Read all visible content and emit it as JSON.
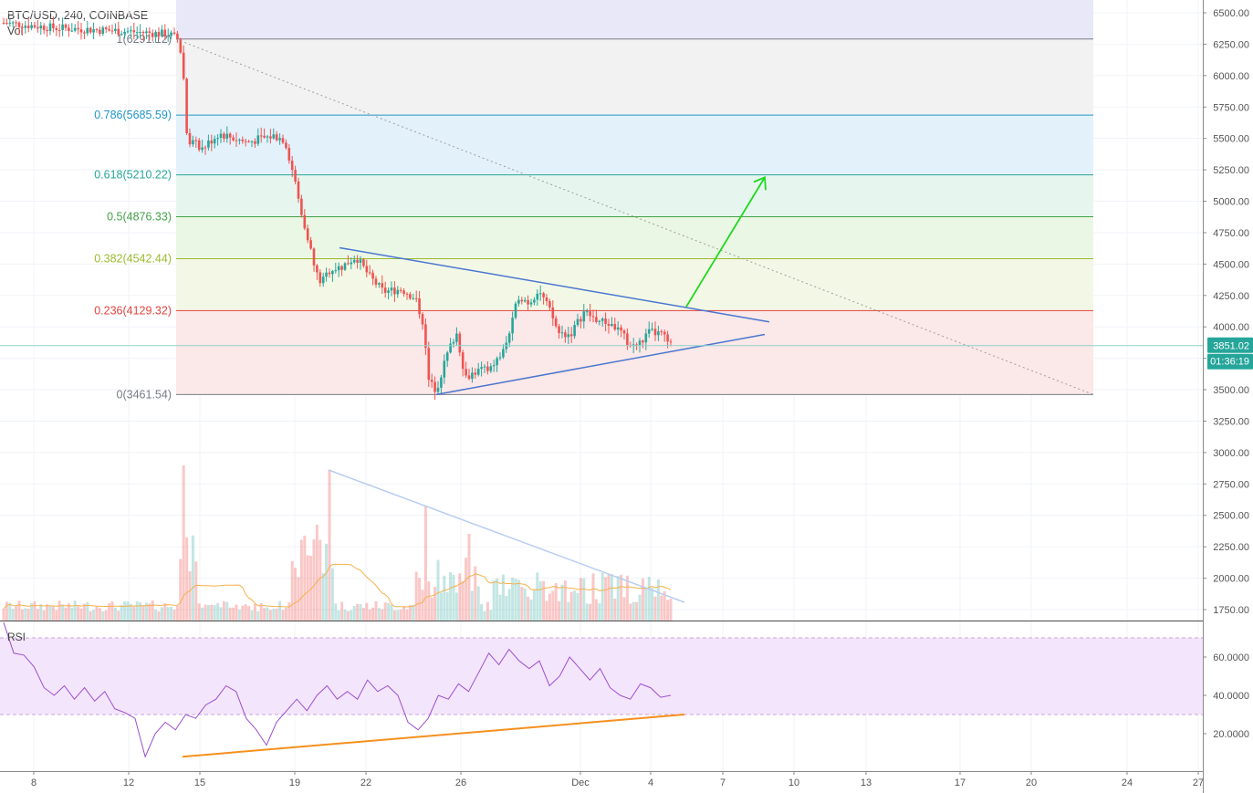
{
  "header": {
    "symbol_line": "BTC/USD, 240, COINBASE",
    "volume_label": "Vol"
  },
  "rsi_label": "RSI",
  "price_axis": {
    "ticks": [
      "6500.00",
      "6250.00",
      "6000.00",
      "5750.00",
      "5500.00",
      "5250.00",
      "5000.00",
      "4750.00",
      "4500.00",
      "4250.00",
      "4000.00",
      "3750.00",
      "3500.00",
      "3250.00",
      "3000.00",
      "2750.00",
      "2500.00",
      "2250.00",
      "2000.00",
      "1750.00"
    ],
    "last_price": "3851.02",
    "countdown": "01:36:19"
  },
  "rsi_axis": {
    "ticks": [
      "60.0000",
      "40.0000",
      "20.0000"
    ]
  },
  "date_axis": {
    "ticks": [
      "8",
      "12",
      "15",
      "19",
      "22",
      "26",
      "Dec",
      "4",
      "7",
      "10",
      "13",
      "17",
      "20",
      "24",
      "27"
    ]
  },
  "fib_levels": [
    {
      "label": "1(6291.12)",
      "price": 6291.12,
      "color": "#787b86",
      "fill": "#e8e8f8"
    },
    {
      "label": "0.786(5685.59)",
      "price": 5685.59,
      "color": "#2196c3",
      "fill": "#f2f2f2"
    },
    {
      "label": "0.618(5210.22)",
      "price": 5210.22,
      "color": "#26a69a",
      "fill": "#e3f1fb"
    },
    {
      "label": "0.5(4876.33)",
      "price": 4876.33,
      "color": "#43a047",
      "fill": "#e6f6ee"
    },
    {
      "label": "0.382(4542.44)",
      "price": 4542.44,
      "color": "#9aba2d",
      "fill": "#eaf7e4"
    },
    {
      "label": "0.236(4129.32)",
      "price": 4129.32,
      "color": "#e0443f",
      "fill": "#f3f8e6"
    },
    {
      "label": "0(3461.54)",
      "price": 3461.54,
      "color": "#787b86",
      "fill": "#fbe8e8"
    }
  ],
  "colors": {
    "up": "#26a69a",
    "down": "#ef5350",
    "trendline": "#4a76d0",
    "arrow": "#1ed81e",
    "rsi": "#9c4fcf",
    "rsi_band": "#f3e5fb",
    "rsi_trend": "#f5901e",
    "volume_ma": "#f5b14a",
    "volume_trend": "#b9cdf0"
  },
  "chart_data": {
    "type": "candlestick",
    "title": "BTC/USD, 240, COINBASE",
    "price_range": [
      1650,
      6620
    ],
    "rsi_range": [
      5,
      72
    ],
    "rsi_band": [
      30,
      70
    ],
    "key_prices": {
      "start": 6420,
      "breakdown_start": 6290,
      "plateau": 5500,
      "low": 3461.54,
      "last": 3851.02,
      "target": 5190
    },
    "triangle": {
      "upper_start": 4630,
      "upper_end": 4040,
      "lower_start": 3461.54,
      "lower_end": 3940
    },
    "rsi_points": [
      78,
      62,
      61,
      55,
      44,
      40,
      45,
      38,
      44,
      37,
      42,
      33,
      31,
      28,
      8,
      20,
      26,
      22,
      30,
      28,
      35,
      38,
      45,
      42,
      28,
      22,
      14,
      26,
      32,
      38,
      32,
      40,
      45,
      38,
      42,
      38,
      48,
      42,
      45,
      40,
      26,
      22,
      28,
      40,
      38,
      46,
      42,
      52,
      62,
      56,
      64,
      58,
      54,
      58,
      45,
      50,
      60,
      54,
      48,
      54,
      44,
      40,
      38,
      46,
      44,
      39,
      40
    ]
  }
}
